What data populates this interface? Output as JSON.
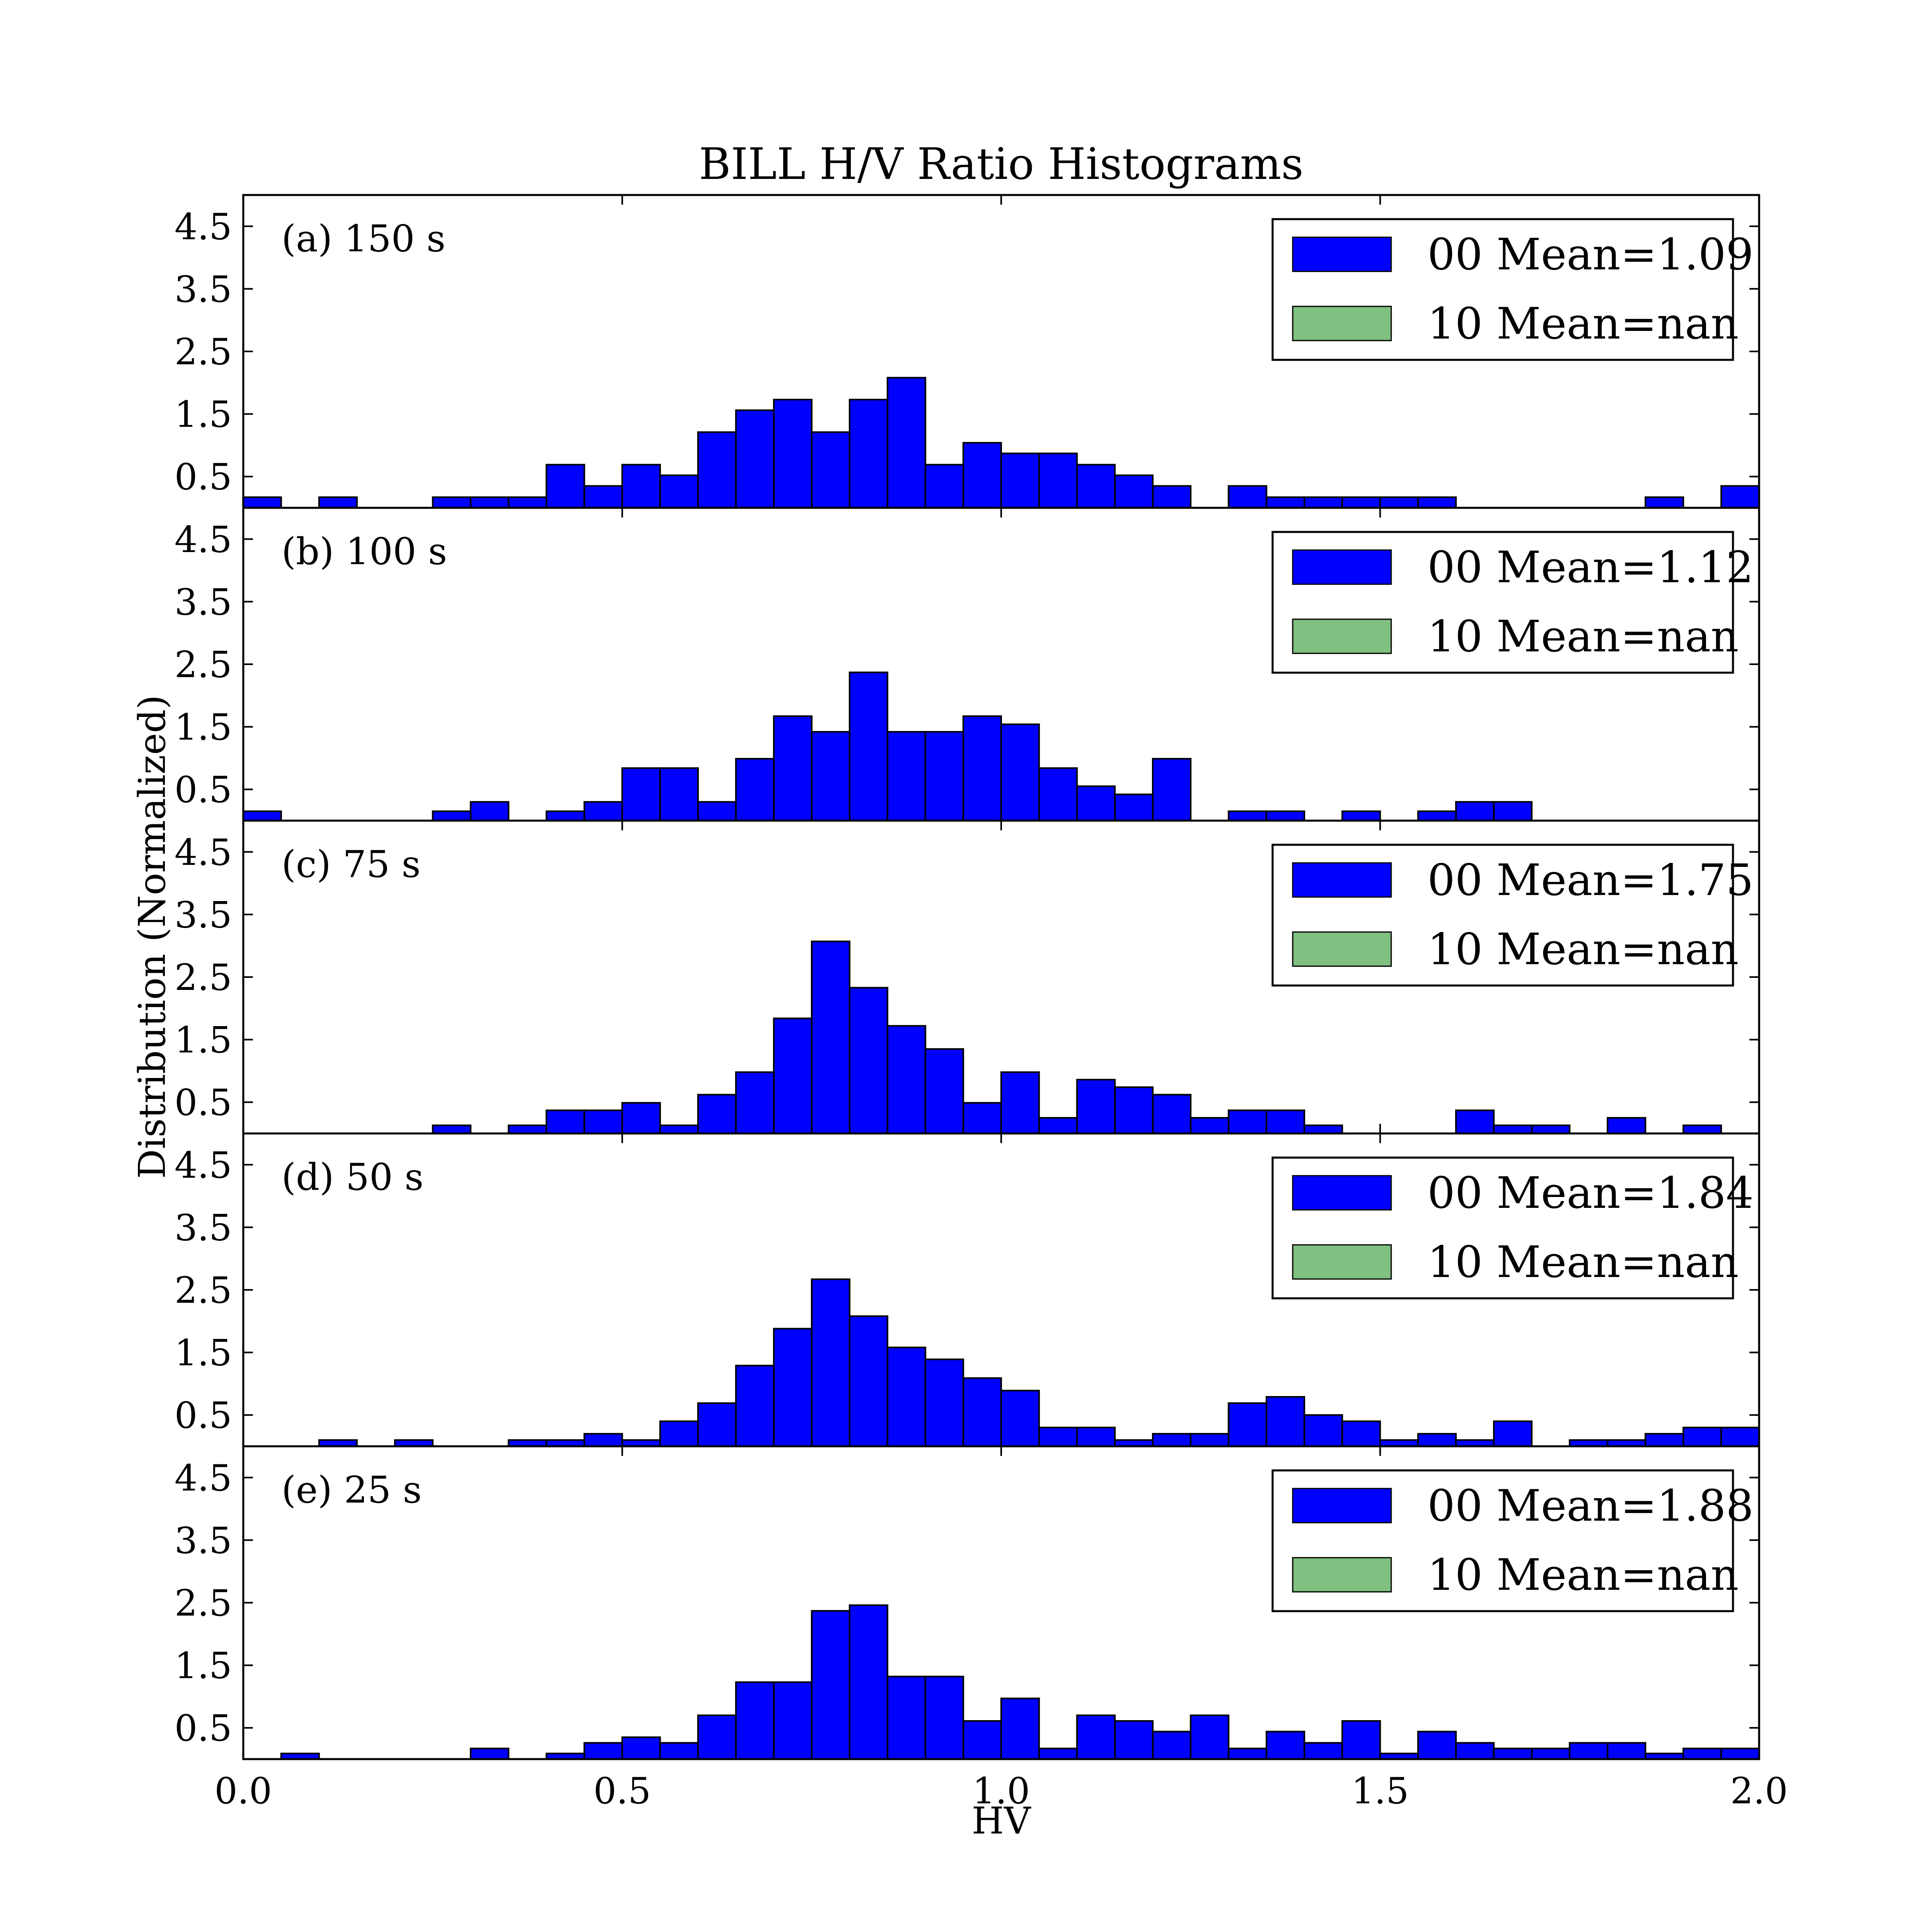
{
  "figure": {
    "title": "BILL H/V Ratio Histograms",
    "xlabel": "HV",
    "ylabel": "Distribution (Normalized)",
    "x_tick_labels": [
      "0.0",
      "0.5",
      "1.0",
      "1.5",
      "2.0"
    ],
    "y_tick_labels": [
      "0.5",
      "1.5",
      "2.5",
      "3.5",
      "4.5"
    ]
  },
  "chart_data": {
    "type": "bar",
    "subtype": "histogram",
    "title": "BILL H/V Ratio Histograms",
    "xlabel": "HV",
    "ylabel": "Distribution (Normalized)",
    "xlim": [
      0.0,
      2.0
    ],
    "ylim": [
      0.0,
      5.0
    ],
    "x_ticks": [
      0.0,
      0.5,
      1.0,
      1.5,
      2.0
    ],
    "y_ticks": [
      0.5,
      1.5,
      2.5,
      3.5,
      4.5
    ],
    "bin_width": 0.05,
    "bin_edges_start": 0.0,
    "grid": false,
    "legend_placement": "upper right",
    "series_styles": [
      {
        "name": "00",
        "color": "#0000ff"
      },
      {
        "name": "10",
        "color": "#80c080"
      }
    ],
    "panels": [
      {
        "label": "(a) 150 s",
        "legend": [
          "00 Mean=1.09",
          "10 Mean=nan"
        ],
        "values": [
          0.17,
          0,
          0.17,
          0,
          0,
          0.17,
          0.17,
          0.17,
          0.69,
          0.35,
          0.69,
          0.52,
          1.21,
          1.56,
          1.73,
          1.21,
          1.73,
          2.08,
          0.69,
          1.04,
          0.87,
          0.87,
          0.69,
          0.52,
          0.35,
          0,
          0.35,
          0.17,
          0.17,
          0.17,
          0.17,
          0.17,
          0,
          0,
          0,
          0,
          0,
          0.17,
          0,
          0.35,
          0.17
        ]
      },
      {
        "label": "(b) 100 s",
        "legend": [
          "00 Mean=1.12",
          "10 Mean=nan"
        ],
        "values": [
          0.15,
          0,
          0,
          0,
          0,
          0.15,
          0.3,
          0,
          0.15,
          0.3,
          0.84,
          0.84,
          0.3,
          0.99,
          1.67,
          1.42,
          2.37,
          1.42,
          1.42,
          1.67,
          1.54,
          0.84,
          0.55,
          0.42,
          0.99,
          0,
          0.15,
          0.15,
          0,
          0.15,
          0,
          0.15,
          0.3,
          0.3,
          0,
          0,
          0,
          0,
          0,
          0,
          0.3
        ]
      },
      {
        "label": "(c) 75 s",
        "legend": [
          "00 Mean=1.75",
          "10 Mean=nan"
        ],
        "values": [
          0,
          0,
          0,
          0,
          0,
          0.13,
          0,
          0.13,
          0.37,
          0.37,
          0.49,
          0.13,
          0.62,
          0.98,
          1.84,
          3.07,
          2.33,
          1.72,
          1.35,
          0.49,
          0.98,
          0.25,
          0.86,
          0.74,
          0.62,
          0.25,
          0.37,
          0.37,
          0.13,
          0,
          0,
          0,
          0.37,
          0.13,
          0.13,
          0,
          0.25,
          0,
          0.13,
          0,
          0
        ]
      },
      {
        "label": "(d) 50 s",
        "legend": [
          "00 Mean=1.84",
          "10 Mean=nan"
        ],
        "values": [
          0,
          0,
          0.1,
          0,
          0.1,
          0,
          0,
          0.1,
          0.1,
          0.2,
          0.1,
          0.4,
          0.69,
          1.29,
          1.88,
          2.67,
          2.08,
          1.58,
          1.39,
          1.09,
          0.89,
          0.3,
          0.3,
          0.1,
          0.2,
          0.2,
          0.69,
          0.79,
          0.5,
          0.4,
          0.1,
          0.2,
          0.1,
          0.4,
          0,
          0.1,
          0.1,
          0.2,
          0.3,
          0.3,
          0.3
        ]
      },
      {
        "label": "(e) 25 s",
        "legend": [
          "00 Mean=1.88",
          "10 Mean=nan"
        ],
        "values": [
          0,
          0.09,
          0,
          0,
          0,
          0,
          0.17,
          0,
          0.09,
          0.26,
          0.35,
          0.26,
          0.7,
          1.23,
          1.23,
          2.37,
          2.46,
          1.32,
          1.32,
          0.61,
          0.97,
          0.17,
          0.7,
          0.61,
          0.44,
          0.7,
          0.17,
          0.44,
          0.26,
          0.61,
          0.09,
          0.44,
          0.26,
          0.17,
          0.17,
          0.26,
          0.26,
          0.09,
          0.17,
          0.17,
          0.17
        ]
      }
    ]
  }
}
